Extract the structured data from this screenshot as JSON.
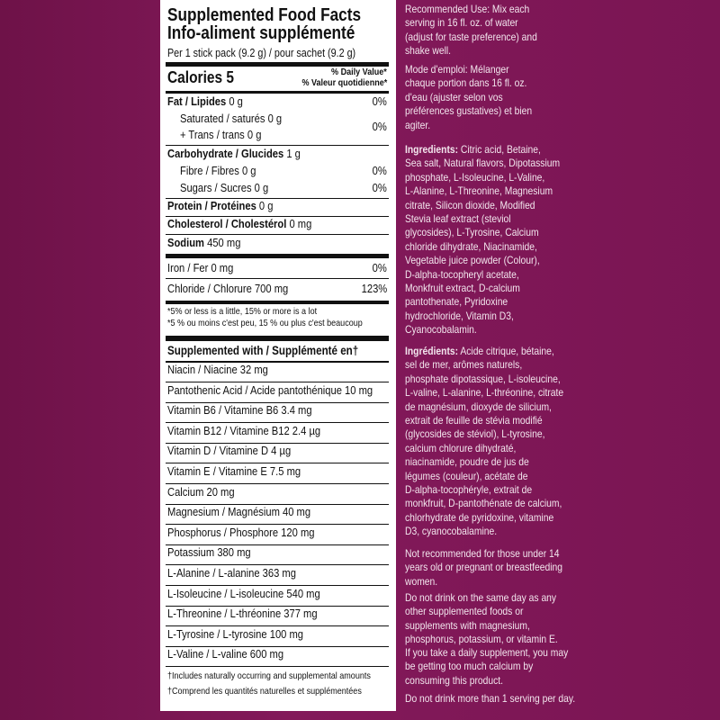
{
  "panel": {
    "title": [
      "Supplemented Food Facts",
      "Info-aliment supplémenté"
    ],
    "serving": "Per 1 stick pack (9.2 g) / pour sachet (9.2 g)",
    "calories": {
      "label": "Calories",
      "value": "5"
    },
    "daily_value_header": [
      "% Daily Value*",
      "% Valeur quotidienne*"
    ],
    "nutrients": [
      {
        "name": "Fat / Lipides",
        "amount": "0 g",
        "dv": "0%"
      },
      {
        "name": "Saturated / saturés",
        "amount": "0 g",
        "dv": "0%"
      },
      {
        "name": "+ Trans / trans",
        "amount": "0 g"
      },
      {
        "name": "Carbohydrate / Glucides",
        "amount": "1 g"
      },
      {
        "name": "Fibre / Fibres",
        "amount": "0 g",
        "dv": "0%"
      },
      {
        "name": "Sugars / Sucres",
        "amount": "0 g",
        "dv": "0%"
      },
      {
        "name": "Protein / Protéines",
        "amount": "0 g"
      },
      {
        "name": "Cholesterol / Cholestérol",
        "amount": "0 mg"
      },
      {
        "name": "Sodium",
        "amount": "450 mg"
      },
      {
        "name": "Iron / Fer",
        "amount": "0 mg",
        "dv": "0%"
      },
      {
        "name": "Chloride / Chlorure",
        "amount": "700 mg",
        "dv": "123%"
      }
    ],
    "footnote": [
      "*5% or less is a little, 15% or more is a lot",
      "*5 % ou moins c'est peu, 15 % ou plus c'est beaucoup"
    ],
    "supplemented_header": "Supplemented with / Supplémenté en†",
    "supplements": [
      {
        "name": "Niacin / Niacine",
        "amount": "32 mg"
      },
      {
        "name": "Pantothenic Acid / Acide pantothénique",
        "amount": "10 mg"
      },
      {
        "name": "Vitamin B6 / Vitamine B6",
        "amount": "3.4 mg"
      },
      {
        "name": "Vitamin B12 / Vitamine B12",
        "amount": "2.4 µg"
      },
      {
        "name": "Vitamin D / Vitamine D",
        "amount": "4 µg"
      },
      {
        "name": "Vitamin E / Vitamine E",
        "amount": "7.5 mg"
      },
      {
        "name": "Calcium",
        "amount": "20 mg"
      },
      {
        "name": "Magnesium / Magnésium",
        "amount": "40 mg"
      },
      {
        "name": "Phosphorus / Phosphore",
        "amount": "120 mg"
      },
      {
        "name": "Potassium",
        "amount": "380 mg"
      },
      {
        "name": "L-Alanine / L-alanine",
        "amount": "363 mg"
      },
      {
        "name": "L-Isoleucine / L-isoleucine",
        "amount": "540 mg"
      },
      {
        "name": "L-Threonine / L-thréonine",
        "amount": "377 mg"
      },
      {
        "name": "L-Tyrosine / L-tyrosine",
        "amount": "100 mg"
      },
      {
        "name": "L-Valine / L-valine",
        "amount": "600 mg"
      }
    ],
    "supplement_footnotes": [
      "†Includes naturally occurring and supplemental amounts",
      "†Comprend les quantités naturelles et supplémentées"
    ]
  },
  "side": {
    "paragraphs": [
      {
        "lines": [
          "Recommended Use: Mix each",
          "serving in 16 fl. oz. of water",
          "(adjust for taste preference) and",
          "shake well."
        ]
      },
      {
        "lines": [
          "Mode d'emploi: Mélanger",
          "chaque portion dans 16 fl. oz.",
          "d'eau (ajuster selon vos",
          "préférences gustatives) et bien",
          "agiter."
        ]
      },
      {
        "label": "Ingredients:",
        "lines": [
          "Citric acid, Betaine,",
          "Sea salt, Natural flavors, Dipotassium",
          "phosphate, L-Isoleucine, L-Valine,",
          "L-Alanine, L-Threonine, Magnesium",
          "citrate, Silicon dioxide, Modified",
          "Stevia leaf extract (steviol",
          "glycosides), L-Tyrosine, Calcium",
          "chloride dihydrate, Niacinamide,",
          "Vegetable juice powder (Colour),",
          "D-alpha-tocopheryl acetate,",
          "Monkfruit extract, D-calcium",
          "pantothenate, Pyridoxine",
          "hydrochloride, Vitamin D3,",
          "Cyanocobalamin."
        ]
      },
      {
        "label": "Ingrédients:",
        "lines": [
          "Acide citrique, bétaine,",
          "sel de mer, arômes naturels,",
          "phosphate dipotassique, L-isoleucine,",
          "L-valine, L-alanine, L-thréonine, citrate",
          "de magnésium, dioxyde de silicium,",
          "extrait de feuille de stévia modifié",
          "(glycosides de stéviol), L-tyrosine,",
          "calcium chlorure dihydraté,",
          "niacinamide, poudre de jus de",
          "légumes (couleur), acétate de",
          "D-alpha-tocophéryle, extrait de",
          "monkfruit, D-pantothénate de calcium,",
          "chlorhydrate de pyridoxine, vitamine",
          "D3, cyanocobalamine."
        ]
      },
      {
        "lines": [
          "Not recommended for those under 14",
          "years old or pregnant or breastfeeding",
          "women."
        ]
      },
      {
        "lines": [
          "Do not drink on the same day as any",
          "other supplemented foods or",
          "supplements with magnesium,",
          "phosphorus, potassium, or vitamin E."
        ]
      },
      {
        "lines": [
          "If you take a daily supplement, you may",
          "be getting too much calcium by",
          "consuming this product."
        ]
      },
      {
        "lines": [
          "Do not drink more than 1 serving per day."
        ]
      }
    ]
  }
}
